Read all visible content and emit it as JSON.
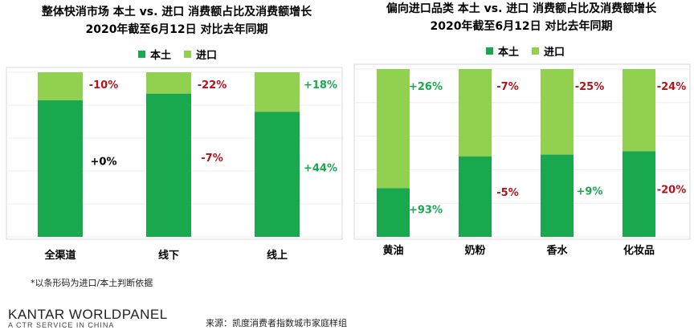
{
  "colors": {
    "domestic": "#1aa84f",
    "import": "#92d050",
    "positive": "#1aa84f",
    "negative": "#b5121b",
    "neutral": "#000000"
  },
  "left": {
    "title1": "整体快消市场 本土 vs. 进口 消费额占比及消费额增长",
    "title2": "2020年截至6月12日 对比去年同期",
    "legend": [
      "本土",
      "进口"
    ]
  },
  "right": {
    "title1": "偏向进口品类 本土 vs. 进口 消费额占比及消费额增长",
    "title2": "2020年截至6月12日 对比去年同期",
    "legend": [
      "本土",
      "进口"
    ]
  },
  "footnote": "*以条形码为进口/本土判断依据",
  "brand": "KANTAR WORLDPANEL",
  "brand_sub": "A CTR SERVICE IN CHINA",
  "source": "来源：凯度消费者指数城市家庭样组",
  "chart_data": [
    {
      "type": "bar",
      "stacked": true,
      "title": "整体快消市场 本土 vs. 进口 消费额占比及消费额增长",
      "subtitle": "2020年截至6月12日 对比去年同期",
      "categories": [
        "全渠道",
        "线下",
        "线上"
      ],
      "series": [
        {
          "name": "本土",
          "values": [
            83,
            87,
            76
          ],
          "growth_labels": [
            "+0%",
            "-7%",
            "+44%"
          ]
        },
        {
          "name": "进口",
          "values": [
            17,
            13,
            24
          ],
          "growth_labels": [
            "-10%",
            "-22%",
            "+18%"
          ]
        }
      ],
      "ylim": [
        0,
        100
      ],
      "legend": "top-center"
    },
    {
      "type": "bar",
      "stacked": true,
      "title": "偏向进口品类 本土 vs. 进口 消费额占比及消费额增长",
      "subtitle": "2020年截至6月12日 对比去年同期",
      "categories": [
        "黄油",
        "奶粉",
        "香水",
        "化妆品"
      ],
      "series": [
        {
          "name": "本土",
          "values": [
            29,
            48,
            49,
            51
          ],
          "growth_labels": [
            "+93%",
            "-5%",
            "+9%",
            "-20%"
          ]
        },
        {
          "name": "进口",
          "values": [
            71,
            52,
            51,
            49
          ],
          "growth_labels": [
            "+26%",
            "-7%",
            "-25%",
            "-24%"
          ]
        }
      ],
      "ylim": [
        0,
        100
      ],
      "legend": "top-center"
    }
  ]
}
